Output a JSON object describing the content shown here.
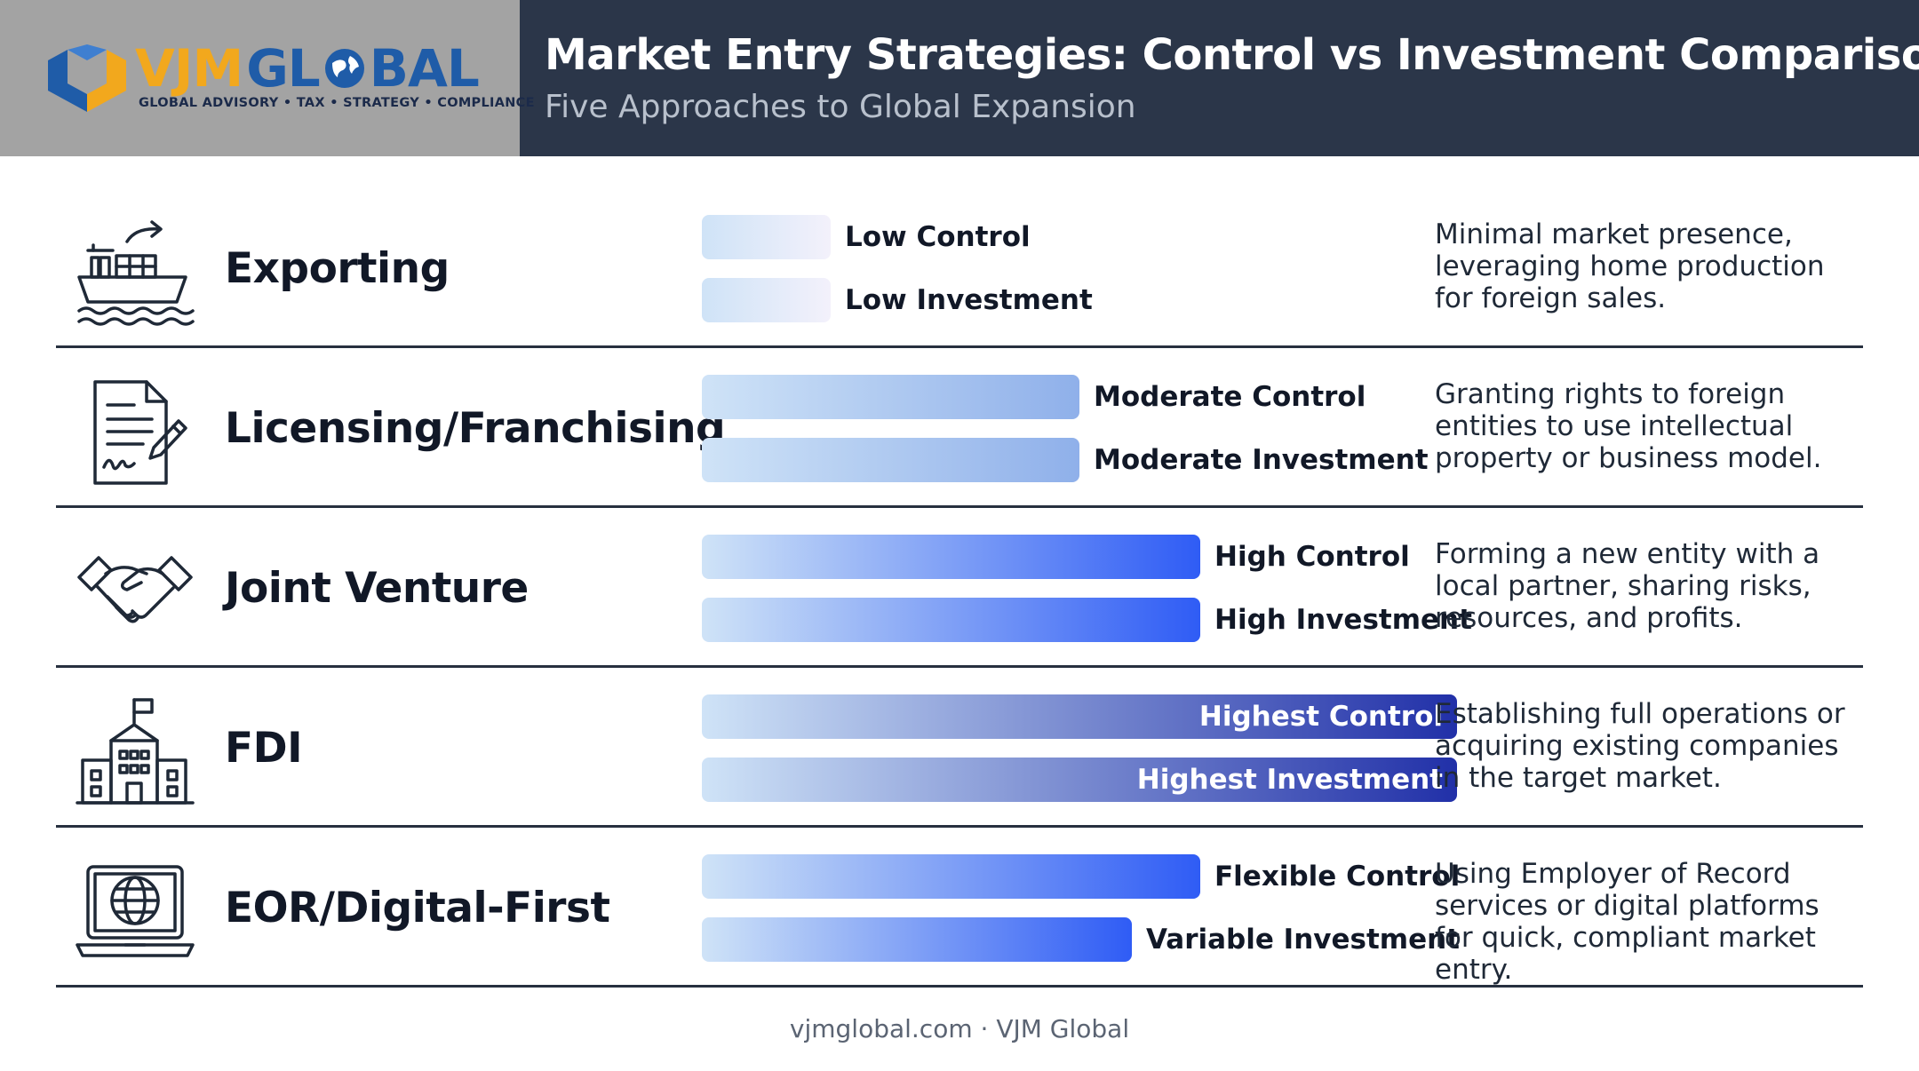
{
  "brand": {
    "logo_text_a": "VJM",
    "logo_text_b": "GL",
    "logo_text_c": "BAL",
    "tagline": "GLOBAL ADVISORY • TAX • STRATEGY • COMPLIANCE",
    "colors": {
      "orange": "#f2a81d",
      "blue": "#1f5ca8",
      "header_bg": "#2b3649",
      "logo_bg": "#a3a3a3"
    }
  },
  "header": {
    "title": "Market Entry Strategies: Control vs Investment Comparison",
    "subtitle": "Five Approaches to Global Expansion"
  },
  "chart_data": {
    "type": "bar",
    "orientation": "horizontal",
    "value_scale": "relative level (0–1), no numeric axis printed",
    "categories": [
      "Exporting",
      "Licensing/Franchising",
      "Joint Venture",
      "FDI",
      "EOR/Digital-First"
    ],
    "series": [
      {
        "name": "Control",
        "levels": [
          "Low Control",
          "Moderate Control",
          "High Control",
          "Highest Control",
          "Flexible Control"
        ],
        "values": [
          0.17,
          0.5,
          0.66,
          1.0,
          0.66
        ]
      },
      {
        "name": "Investment",
        "levels": [
          "Low Investment",
          "Moderate Investment",
          "High Investment",
          "Highest Investment",
          "Variable Investment"
        ],
        "values": [
          0.17,
          0.5,
          0.66,
          1.0,
          0.57
        ]
      }
    ],
    "descriptions": [
      "Minimal market presence, leveraging home production for foreign sales.",
      "Granting rights to foreign entities to use intellectual property or business model.",
      "Forming a new entity with a local partner, sharing risks, resources, and profits.",
      "Establishing full operations or acquiring existing companies in the target market.",
      "Using Employer of Record services or digital platforms for quick, compliant market entry."
    ],
    "icons": [
      "cargo-ship-icon",
      "signed-document-icon",
      "handshake-icon",
      "office-building-icon",
      "laptop-globe-icon"
    ],
    "colors": {
      "bar_light": "#cfe3f7",
      "bar_mid": "#8fb0ea",
      "bar_strong": "#2f5cf5",
      "bar_darkest": "#2130a8"
    }
  },
  "footer": {
    "text": "vjmglobal.com · VJM Global"
  }
}
